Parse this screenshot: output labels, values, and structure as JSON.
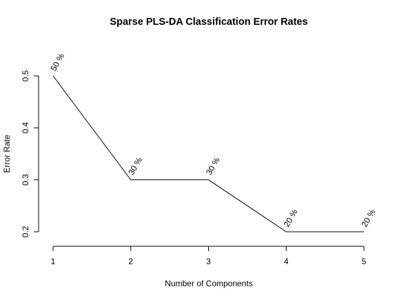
{
  "chart_data": {
    "type": "line",
    "title": "Sparse PLS-DA Classification Error Rates",
    "xlabel": "Number of Components",
    "ylabel": "Error Rate",
    "x": [
      1,
      2,
      3,
      4,
      5
    ],
    "x_tick_labels": [
      "1",
      "2",
      "3",
      "4",
      "5"
    ],
    "y_ticks": [
      0.2,
      0.3,
      0.4,
      0.5
    ],
    "y_tick_labels": [
      "0.2",
      "0.3",
      "0.4",
      "0.5"
    ],
    "series": [
      {
        "values": [
          0.5,
          0.3,
          0.3,
          0.2,
          0.2
        ],
        "data_labels": [
          "50 %",
          "30 %",
          "30 %",
          "20 %",
          "20 %"
        ]
      }
    ],
    "xlim": [
      1,
      5
    ],
    "ylim": [
      0.2,
      0.5
    ],
    "grid": false,
    "color": "#000000"
  }
}
